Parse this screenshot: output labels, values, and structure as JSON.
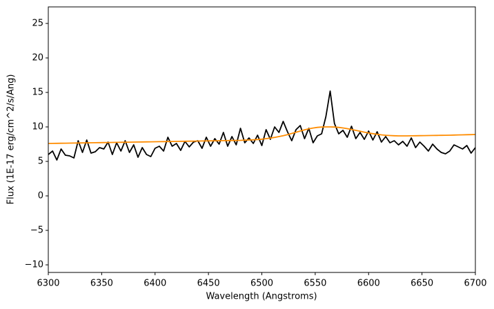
{
  "chart_data": {
    "type": "line",
    "xlabel": "Wavelength (Angstroms)",
    "ylabel": "Flux (1E-17 erg/cm^2/s/Ang)",
    "x": [
      6300,
      6304,
      6308,
      6312,
      6316,
      6320,
      6324,
      6328,
      6332,
      6336,
      6340,
      6344,
      6348,
      6352,
      6356,
      6360,
      6364,
      6368,
      6372,
      6376,
      6380,
      6384,
      6388,
      6392,
      6396,
      6400,
      6404,
      6408,
      6412,
      6416,
      6420,
      6424,
      6428,
      6432,
      6436,
      6440,
      6444,
      6448,
      6452,
      6456,
      6460,
      6464,
      6468,
      6472,
      6476,
      6480,
      6484,
      6488,
      6492,
      6496,
      6500,
      6504,
      6508,
      6512,
      6516,
      6520,
      6524,
      6528,
      6532,
      6536,
      6540,
      6544,
      6548,
      6552,
      6556,
      6560,
      6564,
      6568,
      6572,
      6576,
      6580,
      6584,
      6588,
      6592,
      6596,
      6600,
      6604,
      6608,
      6612,
      6616,
      6620,
      6624,
      6628,
      6632,
      6636,
      6640,
      6644,
      6648,
      6652,
      6656,
      6660,
      6664,
      6668,
      6672,
      6676,
      6680,
      6684,
      6688,
      6692,
      6696,
      6700
    ],
    "series": [
      {
        "color": "#000000",
        "values": [
          6.0,
          6.5,
          5.2,
          6.8,
          5.9,
          5.8,
          5.5,
          8.0,
          6.3,
          8.1,
          6.2,
          6.4,
          7.0,
          6.8,
          7.8,
          6.0,
          7.7,
          6.5,
          8.0,
          6.3,
          7.4,
          5.6,
          7.0,
          6.0,
          5.7,
          6.9,
          7.2,
          6.5,
          8.5,
          7.2,
          7.6,
          6.6,
          7.9,
          7.1,
          7.8,
          8.0,
          6.9,
          8.5,
          7.2,
          8.3,
          7.5,
          9.2,
          7.2,
          8.6,
          7.4,
          9.8,
          7.7,
          8.4,
          7.6,
          8.8,
          7.3,
          9.6,
          8.2,
          10.0,
          9.2,
          10.8,
          9.3,
          8.0,
          9.6,
          10.2,
          8.3,
          9.8,
          7.7,
          8.7,
          9.0,
          11.5,
          15.2,
          10.5,
          9.0,
          9.5,
          8.5,
          10.1,
          8.3,
          9.2,
          8.2,
          9.4,
          8.1,
          9.3,
          7.8,
          8.6,
          7.7,
          8.0,
          7.4,
          7.9,
          7.2,
          8.4,
          7.0,
          7.8,
          7.2,
          6.5,
          7.5,
          6.8,
          6.3,
          6.1,
          6.5,
          7.4,
          7.1,
          6.8,
          7.3,
          6.2,
          7.0
        ]
      },
      {
        "color": "#ff8c00",
        "values": [
          7.6,
          7.61,
          7.62,
          7.63,
          7.64,
          7.65,
          7.66,
          7.67,
          7.68,
          7.69,
          7.7,
          7.71,
          7.72,
          7.73,
          7.74,
          7.75,
          7.76,
          7.77,
          7.78,
          7.79,
          7.8,
          7.81,
          7.82,
          7.83,
          7.84,
          7.85,
          7.86,
          7.87,
          7.88,
          7.89,
          7.9,
          7.91,
          7.92,
          7.93,
          7.94,
          7.95,
          7.96,
          7.97,
          7.98,
          7.99,
          8.0,
          8.01,
          8.02,
          8.03,
          8.04,
          8.05,
          8.08,
          8.1,
          8.13,
          8.17,
          8.22,
          8.3,
          8.38,
          8.48,
          8.6,
          8.73,
          8.88,
          9.05,
          9.22,
          9.4,
          9.57,
          9.72,
          9.84,
          9.93,
          9.98,
          10.0,
          10.0,
          9.98,
          9.93,
          9.85,
          9.75,
          9.63,
          9.5,
          9.37,
          9.24,
          9.12,
          9.02,
          8.93,
          8.85,
          8.79,
          8.75,
          8.72,
          8.7,
          8.7,
          8.7,
          8.71,
          8.72,
          8.73,
          8.74,
          8.75,
          8.76,
          8.77,
          8.78,
          8.79,
          8.8,
          8.82,
          8.84,
          8.85,
          8.87,
          8.88,
          8.9
        ]
      }
    ],
    "xlim": [
      6300,
      6700
    ],
    "xticks": [
      6300,
      6350,
      6400,
      6450,
      6500,
      6550,
      6600,
      6650,
      6700
    ],
    "ylim": [
      -11.1,
      27.4
    ],
    "yticks": [
      {
        "value": -10,
        "label": "−10"
      },
      {
        "value": -5,
        "label": "−5"
      },
      0,
      5,
      10,
      15,
      20,
      25
    ],
    "grid": false
  }
}
